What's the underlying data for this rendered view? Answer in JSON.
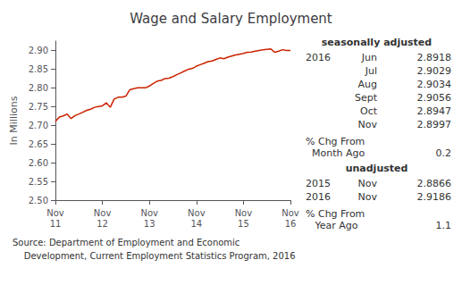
{
  "chart_data": {
    "type": "line",
    "title": "Wage and Salary Employment",
    "ylabel": "In Millions",
    "categories": [
      "Nov\n11",
      null,
      null,
      null,
      null,
      null,
      null,
      null,
      null,
      null,
      null,
      null,
      "Nov\n12",
      null,
      null,
      null,
      null,
      null,
      null,
      null,
      null,
      null,
      null,
      null,
      "Nov\n13",
      null,
      null,
      null,
      null,
      null,
      null,
      null,
      null,
      null,
      null,
      null,
      "Nov\n14",
      null,
      null,
      null,
      null,
      null,
      null,
      null,
      null,
      null,
      null,
      null,
      "Nov\n15",
      null,
      null,
      null,
      null,
      null,
      null,
      null,
      null,
      null,
      null,
      null,
      "Nov\n16"
    ],
    "values": [
      2.71,
      2.722,
      2.725,
      2.73,
      2.718,
      2.726,
      2.73,
      2.735,
      2.74,
      2.743,
      2.748,
      2.75,
      2.752,
      2.76,
      2.748,
      2.77,
      2.775,
      2.775,
      2.778,
      2.795,
      2.798,
      2.8,
      2.8,
      2.8,
      2.805,
      2.812,
      2.818,
      2.82,
      2.825,
      2.826,
      2.83,
      2.835,
      2.84,
      2.845,
      2.85,
      2.852,
      2.858,
      2.862,
      2.866,
      2.87,
      2.872,
      2.876,
      2.88,
      2.878,
      2.882,
      2.885,
      2.888,
      2.89,
      2.892,
      2.895,
      2.896,
      2.898,
      2.9,
      2.902,
      2.903,
      2.904,
      2.895,
      2.898,
      2.902,
      2.9,
      2.9
    ],
    "color": "#cc2200",
    "ylim": [
      2.5,
      2.925
    ],
    "yticks": [
      {
        "value": 2.5,
        "label": "2.50"
      },
      2.55,
      {
        "value": 2.6,
        "label": "2.60"
      },
      2.65,
      {
        "value": 2.7,
        "label": "2.70"
      },
      2.75,
      {
        "value": 2.8,
        "label": "2.80"
      },
      2.85,
      {
        "value": 2.9,
        "label": "2.90"
      }
    ],
    "grid": false,
    "panel": [
      {
        "header": "seasonally adjusted",
        "rows": [
          [
            "2016",
            "Jun",
            "2.8918"
          ],
          [
            "",
            "Jul",
            "2.9029"
          ],
          [
            "",
            "Aug",
            "2.9034"
          ],
          [
            "",
            "Sept",
            "2.9056"
          ],
          [
            "",
            "Oct",
            "2.8947"
          ],
          [
            "",
            "Nov",
            "2.8997"
          ]
        ],
        "change_label": "% Chg From",
        "change_period": "  Month Ago",
        "change": "0.2"
      },
      {
        "header": "unadjusted",
        "rows": [
          [
            "2015",
            "Nov",
            "2.8866"
          ],
          [
            "2016",
            "Nov",
            "2.9186"
          ]
        ],
        "change_label": "% Chg From",
        "change_period": "   Year Ago",
        "change": "1.1"
      }
    ],
    "source": [
      "Source: Department of Employment and Economic",
      "    Development, Current Employment Statistics Program, 2016"
    ]
  }
}
